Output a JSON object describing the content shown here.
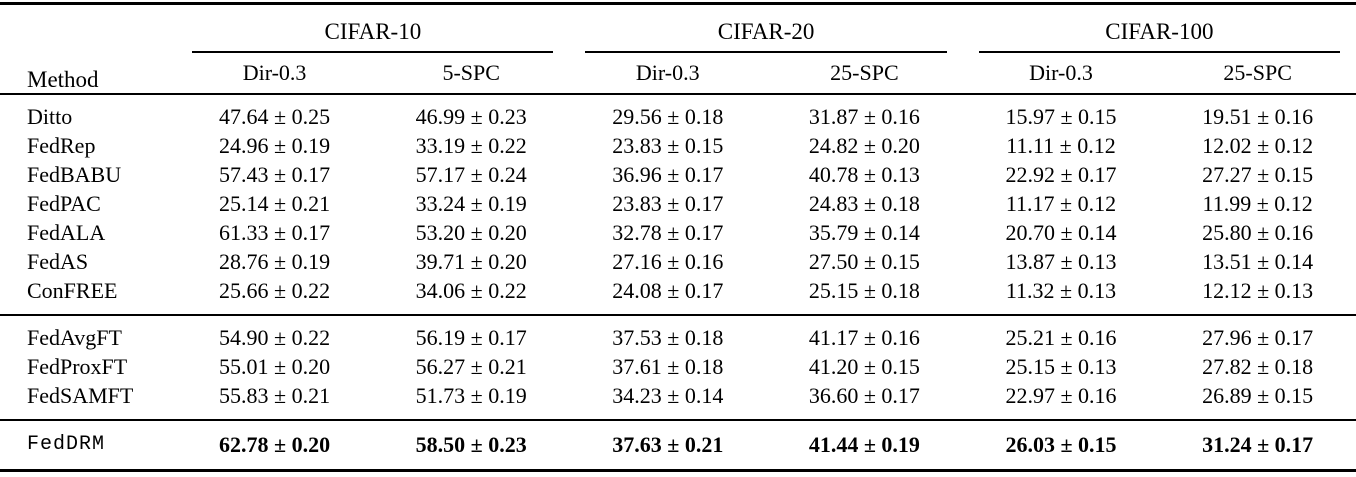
{
  "table": {
    "colors": {
      "text": "#000000",
      "background": "#ffffff",
      "rule": "#000000"
    },
    "header": {
      "method": "Method",
      "groups": [
        {
          "label": "CIFAR-10",
          "cols": [
            "Dir-0.3",
            "5-SPC"
          ]
        },
        {
          "label": "CIFAR-20",
          "cols": [
            "Dir-0.3",
            "25-SPC"
          ]
        },
        {
          "label": "CIFAR-100",
          "cols": [
            "Dir-0.3",
            "25-SPC"
          ]
        }
      ]
    },
    "rows": [
      {
        "method": "Ditto",
        "values": [
          "47.64 ± 0.25",
          "46.99 ± 0.23",
          "29.56 ± 0.18",
          "31.87 ± 0.16",
          "15.97 ± 0.15",
          "19.51 ± 0.16"
        ]
      },
      {
        "method": "FedRep",
        "values": [
          "24.96 ± 0.19",
          "33.19 ± 0.22",
          "23.83 ± 0.15",
          "24.82 ± 0.20",
          "11.11 ± 0.12",
          "12.02 ± 0.12"
        ]
      },
      {
        "method": "FedBABU",
        "values": [
          "57.43 ± 0.17",
          "57.17 ± 0.24",
          "36.96 ± 0.17",
          "40.78 ± 0.13",
          "22.92 ± 0.17",
          "27.27 ± 0.15"
        ]
      },
      {
        "method": "FedPAC",
        "values": [
          "25.14 ± 0.21",
          "33.24 ± 0.19",
          "23.83 ± 0.17",
          "24.83 ± 0.18",
          "11.17 ± 0.12",
          "11.99 ± 0.12"
        ]
      },
      {
        "method": "FedALA",
        "values": [
          "61.33 ± 0.17",
          "53.20 ± 0.20",
          "32.78 ± 0.17",
          "35.79 ± 0.14",
          "20.70 ± 0.14",
          "25.80 ± 0.16"
        ]
      },
      {
        "method": "FedAS",
        "values": [
          "28.76 ± 0.19",
          "39.71 ± 0.20",
          "27.16 ± 0.16",
          "27.50 ± 0.15",
          "13.87 ± 0.13",
          "13.51 ± 0.14"
        ]
      },
      {
        "method": "ConFREE",
        "values": [
          "25.66 ± 0.22",
          "34.06 ± 0.22",
          "24.08 ± 0.17",
          "25.15 ± 0.18",
          "11.32 ± 0.13",
          "12.12 ± 0.13"
        ]
      },
      {
        "method": "FedAvgFT",
        "values": [
          "54.90 ± 0.22",
          "56.19 ± 0.17",
          "37.53 ± 0.18",
          "41.17 ± 0.16",
          "25.21 ± 0.16",
          "27.96 ± 0.17"
        ]
      },
      {
        "method": "FedProxFT",
        "values": [
          "55.01 ± 0.20",
          "56.27 ± 0.21",
          "37.61 ± 0.18",
          "41.20 ± 0.15",
          "25.15 ± 0.13",
          "27.82 ± 0.18"
        ]
      },
      {
        "method": "FedSAMFT",
        "values": [
          "55.83 ± 0.21",
          "51.73 ± 0.19",
          "34.23 ± 0.14",
          "36.60 ± 0.17",
          "22.97 ± 0.16",
          "26.89 ± 0.15"
        ]
      },
      {
        "method": "FedDRM",
        "values": [
          "62.78 ± 0.20",
          "58.50 ± 0.23",
          "37.63 ± 0.21",
          "41.44 ± 0.19",
          "26.03 ± 0.15",
          "31.24 ± 0.17"
        ]
      }
    ]
  }
}
